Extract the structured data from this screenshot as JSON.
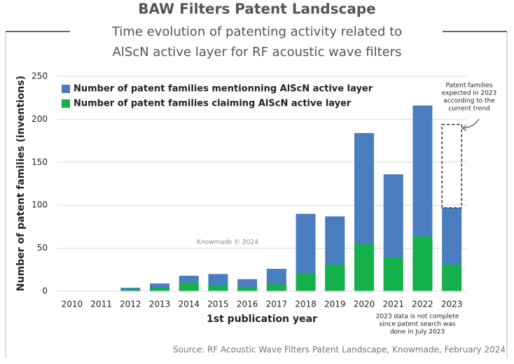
{
  "chart_data": {
    "type": "bar",
    "title": "BAW Filters Patent Landscape",
    "subtitle": [
      "Time evolution of patenting activity related to",
      "AlScN active layer for RF acoustic wave filters"
    ],
    "x_label": "1st publication year",
    "y_label": "Number of patent families (inventions)",
    "categories": [
      "2010",
      "2011",
      "2012",
      "2013",
      "2014",
      "2015",
      "2016",
      "2017",
      "2018",
      "2019",
      "2020",
      "2021",
      "2022",
      "2023"
    ],
    "series": [
      {
        "name": "Number of patent families mentionning AlScN active layer",
        "color": "#4a7dbf",
        "values": [
          0,
          0,
          4,
          9,
          18,
          20,
          14,
          26,
          90,
          87,
          184,
          136,
          216,
          97
        ]
      },
      {
        "name": "Number of patent families claiming AlScN active layer",
        "color": "#13b04b",
        "values": [
          0,
          0,
          2,
          4,
          10,
          7,
          5,
          8,
          21,
          31,
          55,
          39,
          64,
          31
        ]
      }
    ],
    "projection": {
      "category": "2023",
      "value": 194,
      "note": [
        "Patent families",
        "expected in 2023",
        "according to the",
        "current trend"
      ]
    },
    "incomplete_note": [
      "2023 data is not complete",
      "since patent search was",
      "done in July 2023"
    ],
    "watermark": "Knowmade © 2024",
    "source": "Source: RF Acoustic Wave Filters Patent Landscape, Knowmade, February 2024",
    "ylim": [
      0,
      250
    ],
    "yticks": [
      0,
      50,
      100,
      150,
      200,
      250
    ],
    "grid": true,
    "legend": "top-left"
  }
}
